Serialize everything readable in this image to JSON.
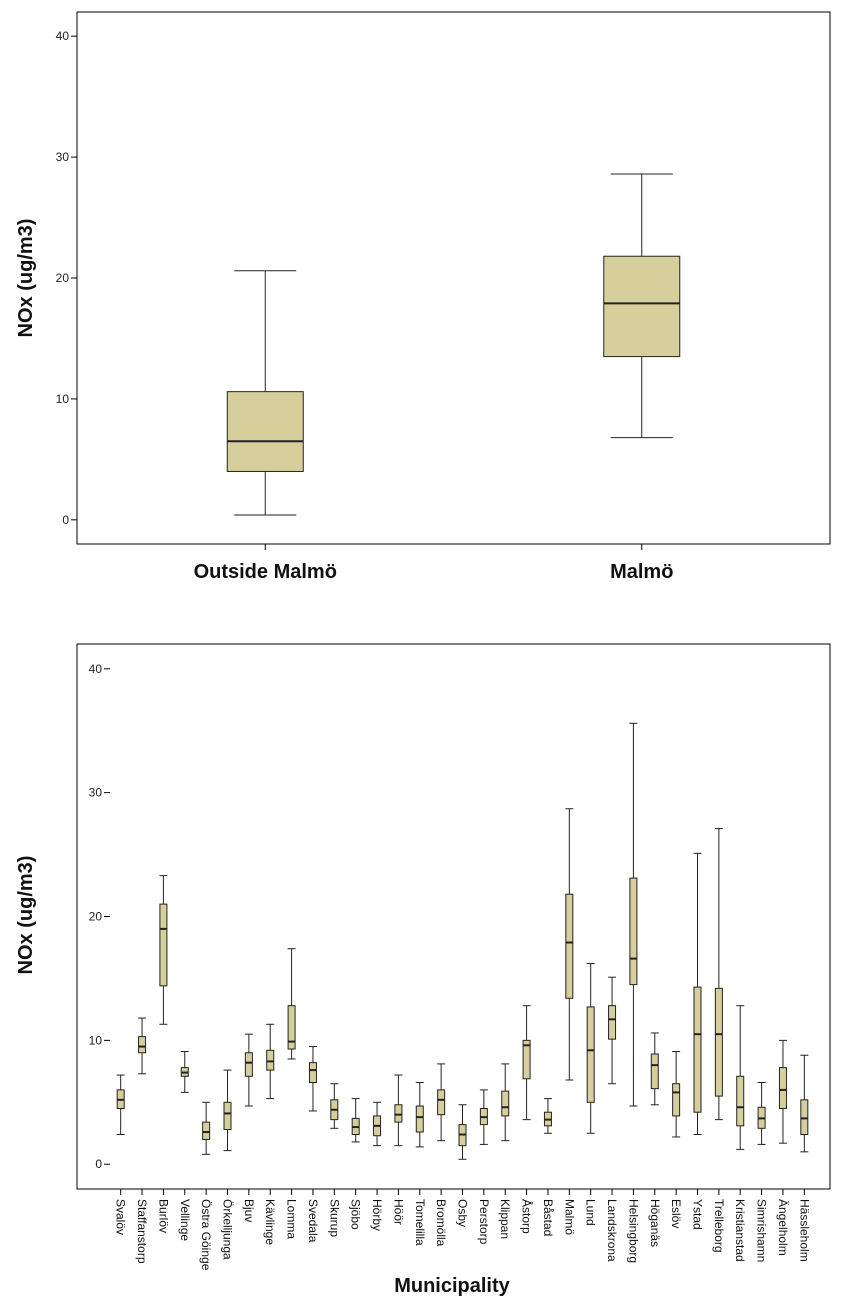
{
  "colors": {
    "box_fill": "#d6cf9c",
    "stroke": "#222222",
    "frame": "#000000"
  },
  "chart_data": [
    {
      "type": "box",
      "ylabel": "NOx (ug/m3)",
      "xlabel": "",
      "ylim": [
        -2,
        42
      ],
      "yticks": [
        0,
        10,
        20,
        30,
        40
      ],
      "grid": false,
      "categories": [
        "Outside Malmö",
        "Malmö"
      ],
      "boxes": [
        {
          "min": 0.4,
          "q1": 4.0,
          "median": 6.5,
          "q3": 10.6,
          "max": 20.6
        },
        {
          "min": 6.8,
          "q1": 13.5,
          "median": 17.9,
          "q3": 21.8,
          "max": 28.6
        }
      ]
    },
    {
      "type": "box",
      "ylabel": "NOx (ug/m3)",
      "xlabel": "Municipality",
      "ylim": [
        -2,
        42
      ],
      "yticks": [
        0,
        10,
        20,
        30,
        40
      ],
      "grid": false,
      "categories": [
        "Svalöv",
        "Staffanstorp",
        "Burlöv",
        "Vellinge",
        "Östra Göinge",
        "Örkelljunga",
        "Bjuv",
        "Kävlinge",
        "Lomma",
        "Svedala",
        "Skurup",
        "Sjöbo",
        "Hörby",
        "Höör",
        "Tomelilla",
        "Bromölla",
        "Osby",
        "Perstorp",
        "Klippan",
        "Åstorp",
        "Båstad",
        "Malmö",
        "Lund",
        "Landskrona",
        "Helsingborg",
        "Höganäs",
        "Eslöv",
        "Ystad",
        "Trelleborg",
        "Kristianstad",
        "Simrishamn",
        "Ängelholm",
        "Hässleholm"
      ],
      "boxes": [
        {
          "min": 2.4,
          "q1": 4.5,
          "median": 5.2,
          "q3": 6.0,
          "max": 7.2
        },
        {
          "min": 7.3,
          "q1": 9.0,
          "median": 9.5,
          "q3": 10.3,
          "max": 11.8
        },
        {
          "min": 11.3,
          "q1": 14.4,
          "median": 19.0,
          "q3": 21.0,
          "max": 23.3
        },
        {
          "min": 5.8,
          "q1": 7.1,
          "median": 7.4,
          "q3": 7.8,
          "max": 9.1
        },
        {
          "min": 0.8,
          "q1": 2.0,
          "median": 2.6,
          "q3": 3.4,
          "max": 5.0
        },
        {
          "min": 1.1,
          "q1": 2.8,
          "median": 4.1,
          "q3": 5.0,
          "max": 7.6
        },
        {
          "min": 4.7,
          "q1": 7.1,
          "median": 8.2,
          "q3": 9.0,
          "max": 10.5
        },
        {
          "min": 5.3,
          "q1": 7.6,
          "median": 8.3,
          "q3": 9.2,
          "max": 11.3
        },
        {
          "min": 8.5,
          "q1": 9.3,
          "median": 9.9,
          "q3": 12.8,
          "max": 17.4
        },
        {
          "min": 4.3,
          "q1": 6.6,
          "median": 7.6,
          "q3": 8.2,
          "max": 9.5
        },
        {
          "min": 2.9,
          "q1": 3.6,
          "median": 4.4,
          "q3": 5.2,
          "max": 6.5
        },
        {
          "min": 1.8,
          "q1": 2.4,
          "median": 3.0,
          "q3": 3.7,
          "max": 5.3
        },
        {
          "min": 1.5,
          "q1": 2.3,
          "median": 3.1,
          "q3": 3.9,
          "max": 5.0
        },
        {
          "min": 1.5,
          "q1": 3.4,
          "median": 4.0,
          "q3": 4.8,
          "max": 7.2
        },
        {
          "min": 1.4,
          "q1": 2.6,
          "median": 3.8,
          "q3": 4.7,
          "max": 6.6
        },
        {
          "min": 1.9,
          "q1": 4.0,
          "median": 5.2,
          "q3": 6.0,
          "max": 8.1
        },
        {
          "min": 0.4,
          "q1": 1.5,
          "median": 2.4,
          "q3": 3.2,
          "max": 4.8
        },
        {
          "min": 1.6,
          "q1": 3.2,
          "median": 3.8,
          "q3": 4.5,
          "max": 6.0
        },
        {
          "min": 1.9,
          "q1": 3.9,
          "median": 4.6,
          "q3": 5.9,
          "max": 8.1
        },
        {
          "min": 3.6,
          "q1": 6.9,
          "median": 9.6,
          "q3": 10.0,
          "max": 12.8
        },
        {
          "min": 2.5,
          "q1": 3.1,
          "median": 3.6,
          "q3": 4.2,
          "max": 5.3
        },
        {
          "min": 6.8,
          "q1": 13.4,
          "median": 17.9,
          "q3": 21.8,
          "max": 28.7
        },
        {
          "min": 2.5,
          "q1": 5.0,
          "median": 9.2,
          "q3": 12.7,
          "max": 16.2
        },
        {
          "min": 6.5,
          "q1": 10.1,
          "median": 11.7,
          "q3": 12.8,
          "max": 15.1
        },
        {
          "min": 4.7,
          "q1": 14.5,
          "median": 16.6,
          "q3": 23.1,
          "max": 35.6
        },
        {
          "min": 4.8,
          "q1": 6.1,
          "median": 8.0,
          "q3": 8.9,
          "max": 10.6
        },
        {
          "min": 2.2,
          "q1": 3.9,
          "median": 5.8,
          "q3": 6.5,
          "max": 9.1
        },
        {
          "min": 2.4,
          "q1": 4.2,
          "median": 10.5,
          "q3": 14.3,
          "max": 25.1
        },
        {
          "min": 3.6,
          "q1": 5.5,
          "median": 10.5,
          "q3": 14.2,
          "max": 27.1
        },
        {
          "min": 1.2,
          "q1": 3.1,
          "median": 4.6,
          "q3": 7.1,
          "max": 12.8
        },
        {
          "min": 1.6,
          "q1": 2.9,
          "median": 3.7,
          "q3": 4.6,
          "max": 6.6
        },
        {
          "min": 1.7,
          "q1": 4.5,
          "median": 6.0,
          "q3": 7.8,
          "max": 10.0
        },
        {
          "min": 1.0,
          "q1": 2.4,
          "median": 3.7,
          "q3": 5.2,
          "max": 8.8
        }
      ]
    }
  ]
}
